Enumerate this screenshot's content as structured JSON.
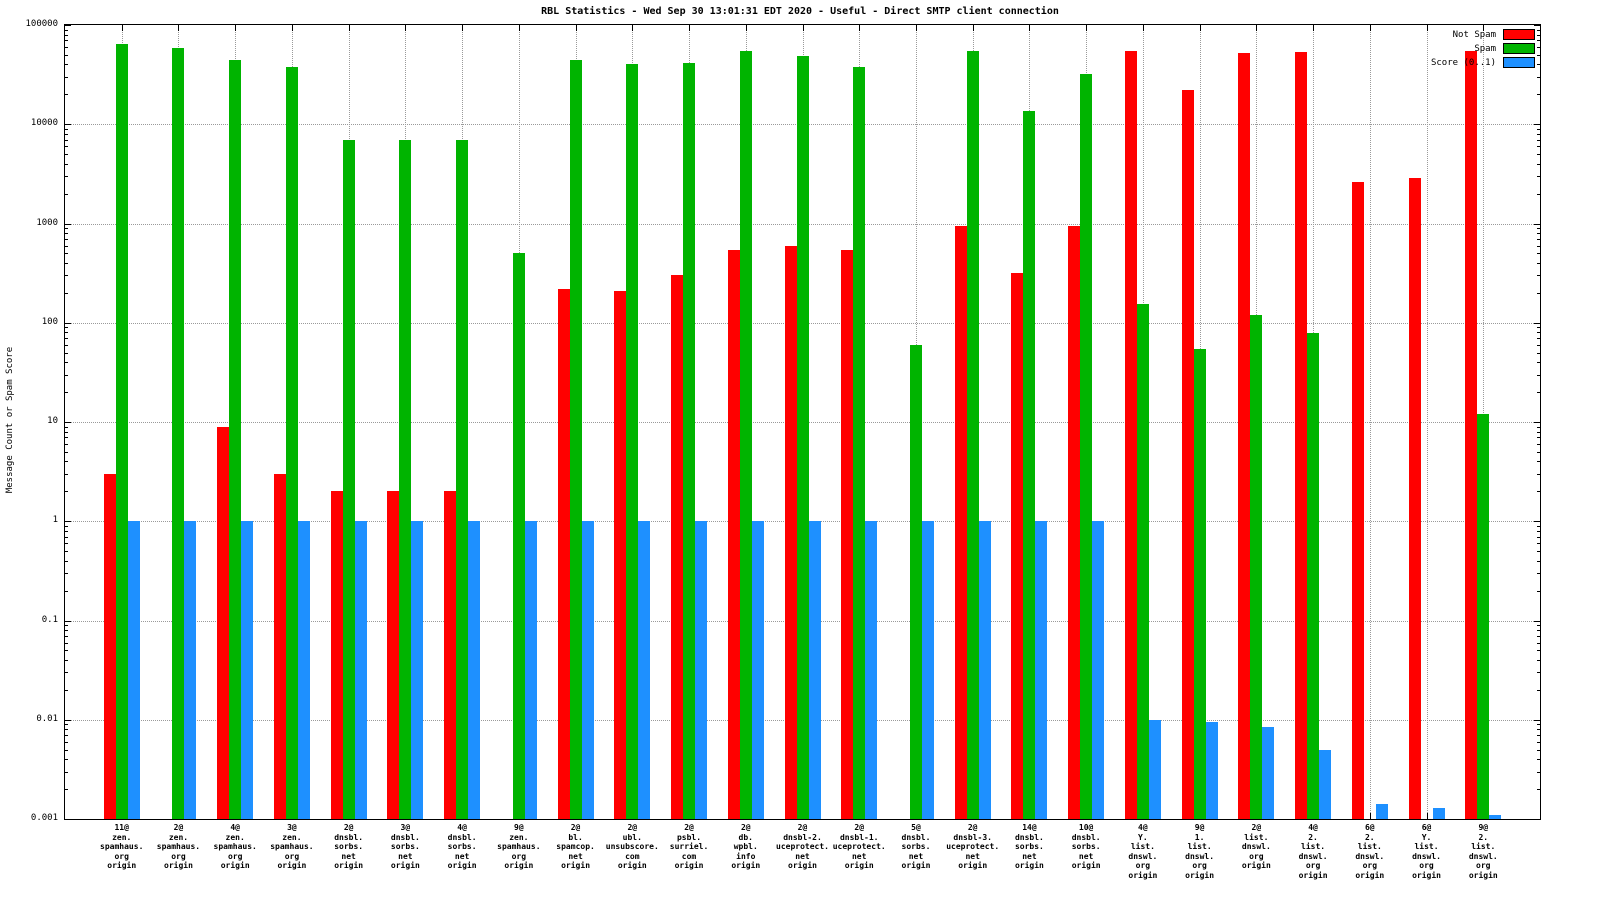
{
  "title": "RBL Statistics - Wed Sep 30 13:01:31 EDT 2020 - Useful - Direct SMTP client connection",
  "ylabel": "Message Count or Spam Score",
  "chart_data": {
    "type": "bar",
    "title": "RBL Statistics - Wed Sep 30 13:01:31 EDT 2020 - Useful - Direct SMTP client connection",
    "ylabel": "Message Count or Spam Score",
    "xlabel": "",
    "y_scale": "log",
    "ylim": [
      0.001,
      100000
    ],
    "y_ticks": [
      "100000",
      "10000",
      "1000",
      "100",
      "10",
      "1",
      "0.1",
      "0.01",
      "0.001"
    ],
    "grid": true,
    "legend_position": "top-right",
    "categories": [
      [
        "11@",
        "zen.",
        "spamhaus.",
        "org",
        "origin"
      ],
      [
        "2@",
        "zen.",
        "spamhaus.",
        "org",
        "origin"
      ],
      [
        "4@",
        "zen.",
        "spamhaus.",
        "org",
        "origin"
      ],
      [
        "3@",
        "zen.",
        "spamhaus.",
        "org",
        "origin"
      ],
      [
        "2@",
        "dnsbl.",
        "sorbs.",
        "net",
        "origin"
      ],
      [
        "3@",
        "dnsbl.",
        "sorbs.",
        "net",
        "origin"
      ],
      [
        "4@",
        "dnsbl.",
        "sorbs.",
        "net",
        "origin"
      ],
      [
        "9@",
        "zen.",
        "spamhaus.",
        "org",
        "origin"
      ],
      [
        "2@",
        "bl.",
        "spamcop.",
        "net",
        "origin"
      ],
      [
        "2@",
        "ubl.",
        "unsubscore.",
        "com",
        "origin"
      ],
      [
        "2@",
        "psbl.",
        "surriel.",
        "com",
        "origin"
      ],
      [
        "2@",
        "db.",
        "wpbl.",
        "info",
        "origin"
      ],
      [
        "2@",
        "dnsbl-2.",
        "uceprotect.",
        "net",
        "origin"
      ],
      [
        "2@",
        "dnsbl-1.",
        "uceprotect.",
        "net",
        "origin"
      ],
      [
        "5@",
        "dnsbl.",
        "sorbs.",
        "net",
        "origin"
      ],
      [
        "2@",
        "dnsbl-3.",
        "uceprotect.",
        "net",
        "origin"
      ],
      [
        "14@",
        "dnsbl.",
        "sorbs.",
        "net",
        "origin"
      ],
      [
        "10@",
        "dnsbl.",
        "sorbs.",
        "net",
        "origin"
      ],
      [
        "4@",
        "Y.",
        "list.",
        "dnswl.",
        "org",
        "origin"
      ],
      [
        "9@",
        "1.",
        "list.",
        "dnswl.",
        "org",
        "origin"
      ],
      [
        "2@",
        "list.",
        "dnswl.",
        "org",
        "origin"
      ],
      [
        "4@",
        "2.",
        "list.",
        "dnswl.",
        "org",
        "origin"
      ],
      [
        "6@",
        "2.",
        "list.",
        "dnswl.",
        "org",
        "origin"
      ],
      [
        "6@",
        "Y.",
        "list.",
        "dnswl.",
        "org",
        "origin"
      ],
      [
        "9@",
        "2.",
        "list.",
        "dnswl.",
        "org",
        "origin"
      ]
    ],
    "series": [
      {
        "name": "Not Spam",
        "color": "#ff0000",
        "values": [
          3,
          null,
          9,
          3,
          2,
          2,
          2,
          null,
          220,
          210,
          300,
          540,
          600,
          540,
          null,
          950,
          320,
          950,
          55000,
          22000,
          52000,
          53000,
          2600,
          2900,
          55000
        ]
      },
      {
        "name": "Spam",
        "color": "#00b400",
        "values": [
          65000,
          58000,
          44000,
          38000,
          7000,
          7000,
          7000,
          500,
          44000,
          40000,
          41000,
          55000,
          49000,
          38000,
          60,
          55000,
          13500,
          32000,
          155,
          55,
          120,
          78,
          null,
          null,
          12
        ]
      },
      {
        "name": "Score (0..1)",
        "color": "#1e90ff",
        "values": [
          1,
          1,
          1,
          1,
          1,
          1,
          1,
          1,
          1,
          1,
          1,
          1,
          1,
          1,
          1,
          1,
          1,
          1,
          0.01,
          0.0095,
          0.0085,
          0.005,
          0.0014,
          0.0013,
          0.0011
        ]
      }
    ]
  }
}
